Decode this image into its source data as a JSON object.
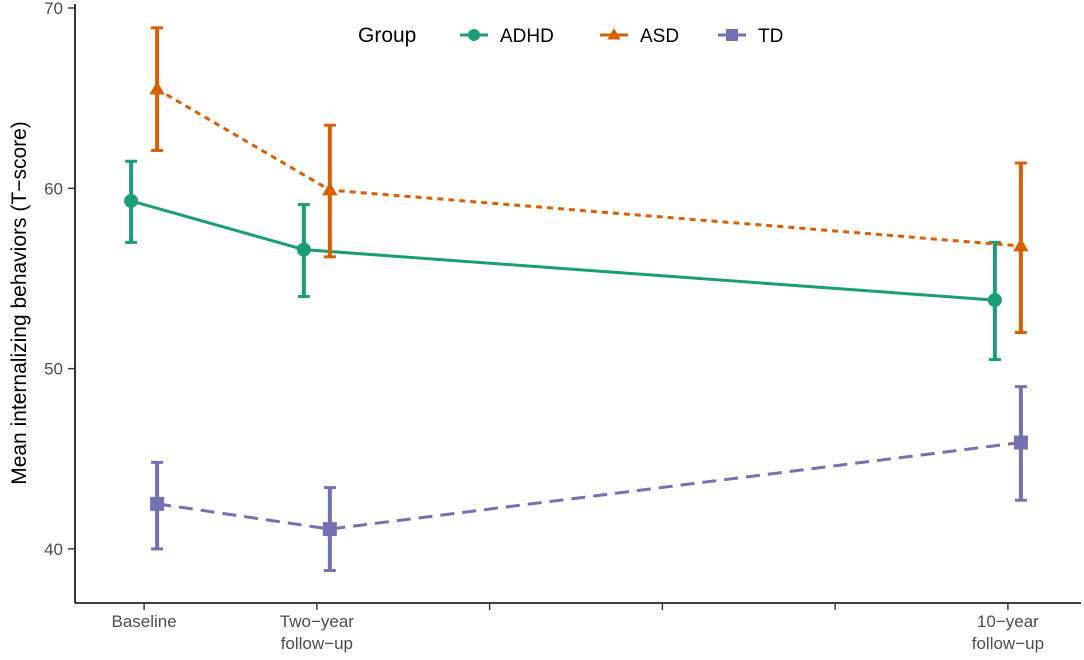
{
  "chart_data": {
    "type": "line",
    "title": "",
    "ylabel": "Mean internalizing behaviors (T−score)",
    "xlabel": "",
    "ylim": [
      37,
      70
    ],
    "yticks": [
      40,
      50,
      60,
      70
    ],
    "x_domain": [
      0.6,
      6.4
    ],
    "x_ticks": [
      {
        "x": 1,
        "label_lines": [
          "Baseline"
        ]
      },
      {
        "x": 2,
        "label_lines": [
          "Two−year",
          "follow−up"
        ]
      },
      {
        "x": 3,
        "label_lines": []
      },
      {
        "x": 4,
        "label_lines": []
      },
      {
        "x": 5,
        "label_lines": []
      },
      {
        "x": 6,
        "label_lines": [
          "10−year",
          "follow−up"
        ]
      }
    ],
    "legend": {
      "title": "Group",
      "position": "top"
    },
    "series": [
      {
        "name": "ADHD",
        "color": "#1b9e77",
        "marker": "circle",
        "dash": "solid",
        "points": [
          {
            "x": 1.0,
            "y": 59.3,
            "lo": 57.0,
            "hi": 61.5
          },
          {
            "x": 2.0,
            "y": 56.6,
            "lo": 54.0,
            "hi": 59.1
          },
          {
            "x": 6.0,
            "y": 53.8,
            "lo": 50.5,
            "hi": 57.0
          }
        ]
      },
      {
        "name": "ASD",
        "color": "#d95f02",
        "marker": "triangle",
        "dash": "dotted",
        "points": [
          {
            "x": 1.0,
            "y": 65.5,
            "lo": 62.1,
            "hi": 68.9
          },
          {
            "x": 2.0,
            "y": 59.9,
            "lo": 56.2,
            "hi": 63.5
          },
          {
            "x": 6.0,
            "y": 56.8,
            "lo": 52.0,
            "hi": 61.4
          }
        ]
      },
      {
        "name": "TD",
        "color": "#7570b3",
        "marker": "square",
        "dash": "dashed",
        "points": [
          {
            "x": 1.0,
            "y": 42.5,
            "lo": 40.0,
            "hi": 44.8
          },
          {
            "x": 2.0,
            "y": 41.1,
            "lo": 38.8,
            "hi": 43.4
          },
          {
            "x": 6.0,
            "y": 45.9,
            "lo": 42.7,
            "hi": 49.0
          }
        ]
      }
    ]
  }
}
